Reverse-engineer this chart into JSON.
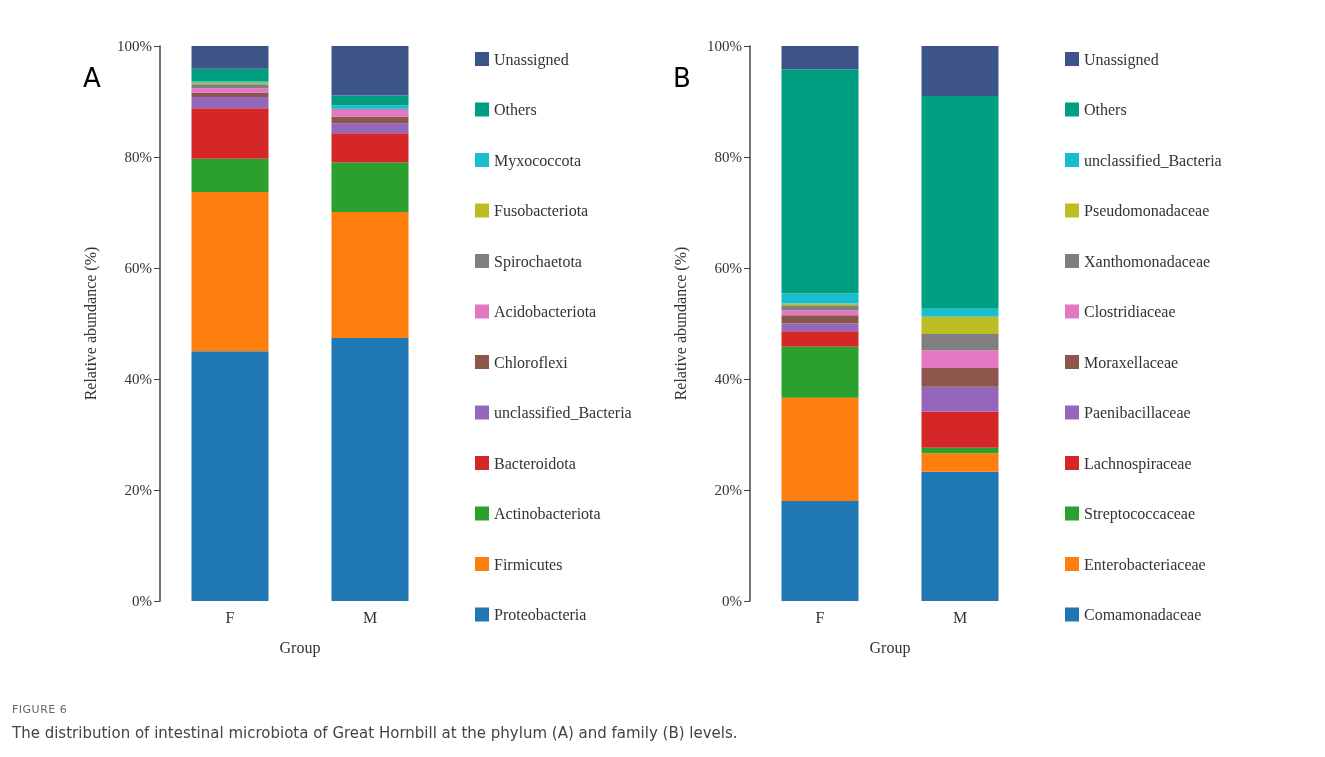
{
  "chart_data": [
    {
      "type": "bar",
      "title": "A",
      "xlabel": "Group",
      "ylabel": "Relative abundance (%)",
      "categories": [
        "F",
        "M"
      ],
      "stacked": true,
      "legend": "right",
      "grid": false,
      "ylim": [
        0,
        100
      ],
      "yticks": [
        {
          "value": 0,
          "label": "0%"
        },
        {
          "value": 20,
          "label": "20%"
        },
        {
          "value": 40,
          "label": "40%"
        },
        {
          "value": 60,
          "label": "60%"
        },
        {
          "value": 80,
          "label": "80%"
        },
        {
          "value": 100,
          "label": "100%"
        }
      ],
      "series": [
        {
          "name": "Proteobacteria",
          "color": "#1f77b4",
          "values": [
            45.0,
            47.4
          ]
        },
        {
          "name": "Firmicutes",
          "color": "#ff7f0e",
          "values": [
            28.7,
            22.7
          ]
        },
        {
          "name": "Actinobacteriota",
          "color": "#2ca02c",
          "values": [
            6.0,
            8.9
          ]
        },
        {
          "name": "Bacteroidota",
          "color": "#d62728",
          "values": [
            9.1,
            5.3
          ]
        },
        {
          "name": "unclassified_Bacteria",
          "color": "#9467bd",
          "values": [
            2.0,
            1.8
          ]
        },
        {
          "name": "Chloroflexi",
          "color": "#8c564b",
          "values": [
            0.8,
            1.2
          ]
        },
        {
          "name": "Acidobacteriota",
          "color": "#e377c2",
          "values": [
            0.8,
            1.2
          ]
        },
        {
          "name": "Spirochaetota",
          "color": "#7f7f7f",
          "values": [
            0.7,
            0.2
          ]
        },
        {
          "name": "Fusobacteriota",
          "color": "#bcbd22",
          "values": [
            0.3,
            null
          ]
        },
        {
          "name": "Myxococcota",
          "color": "#17becf",
          "values": [
            0.2,
            0.6
          ]
        },
        {
          "name": "Others",
          "color": "#009e80",
          "values": [
            2.3,
            1.8
          ]
        },
        {
          "name": "Unassigned",
          "color": "#3c5488",
          "values": [
            4.1,
            8.9
          ]
        }
      ],
      "annotations": [
        "FIGURE 6",
        "The distribution of intestinal microbiota of Great Hornbill at the phylum (A) and family (B) levels."
      ]
    },
    {
      "type": "bar",
      "title": "B",
      "xlabel": "Group",
      "ylabel": "Relative abundance (%)",
      "categories": [
        "F",
        "M"
      ],
      "stacked": true,
      "legend": "right",
      "grid": false,
      "ylim": [
        0,
        100
      ],
      "yticks": [
        {
          "value": 0,
          "label": "0%"
        },
        {
          "value": 20,
          "label": "20%"
        },
        {
          "value": 40,
          "label": "40%"
        },
        {
          "value": 60,
          "label": "60%"
        },
        {
          "value": 80,
          "label": "80%"
        },
        {
          "value": 100,
          "label": "100%"
        }
      ],
      "series": [
        {
          "name": "Comamonadaceae",
          "color": "#1f77b4",
          "values": [
            18.0,
            23.3
          ]
        },
        {
          "name": "Enterobacteriaceae",
          "color": "#ff7f0e",
          "values": [
            18.6,
            3.3
          ]
        },
        {
          "name": "Streptococcaceae",
          "color": "#2ca02c",
          "values": [
            9.2,
            1.0
          ]
        },
        {
          "name": "Lachnospiraceae",
          "color": "#d62728",
          "values": [
            2.8,
            6.5
          ]
        },
        {
          "name": "Paenibacillaceae",
          "color": "#9467bd",
          "values": [
            1.4,
            4.5
          ]
        },
        {
          "name": "Moraxellaceae",
          "color": "#8c564b",
          "values": [
            1.5,
            3.4
          ]
        },
        {
          "name": "Clostridiaceae",
          "color": "#e377c2",
          "values": [
            0.9,
            3.2
          ]
        },
        {
          "name": "Xanthomonadaceae",
          "color": "#7f7f7f",
          "values": [
            0.9,
            2.9
          ]
        },
        {
          "name": "Pseudomonadaceae",
          "color": "#bcbd22",
          "values": [
            0.3,
            3.1
          ]
        },
        {
          "name": "unclassified_Bacteria",
          "color": "#17becf",
          "values": [
            1.8,
            1.6
          ]
        },
        {
          "name": "Others",
          "color": "#009e80",
          "values": [
            40.4,
            38.2
          ]
        },
        {
          "name": "Unassigned",
          "color": "#3c5488",
          "values": [
            4.2,
            9.0
          ]
        }
      ]
    }
  ]
}
